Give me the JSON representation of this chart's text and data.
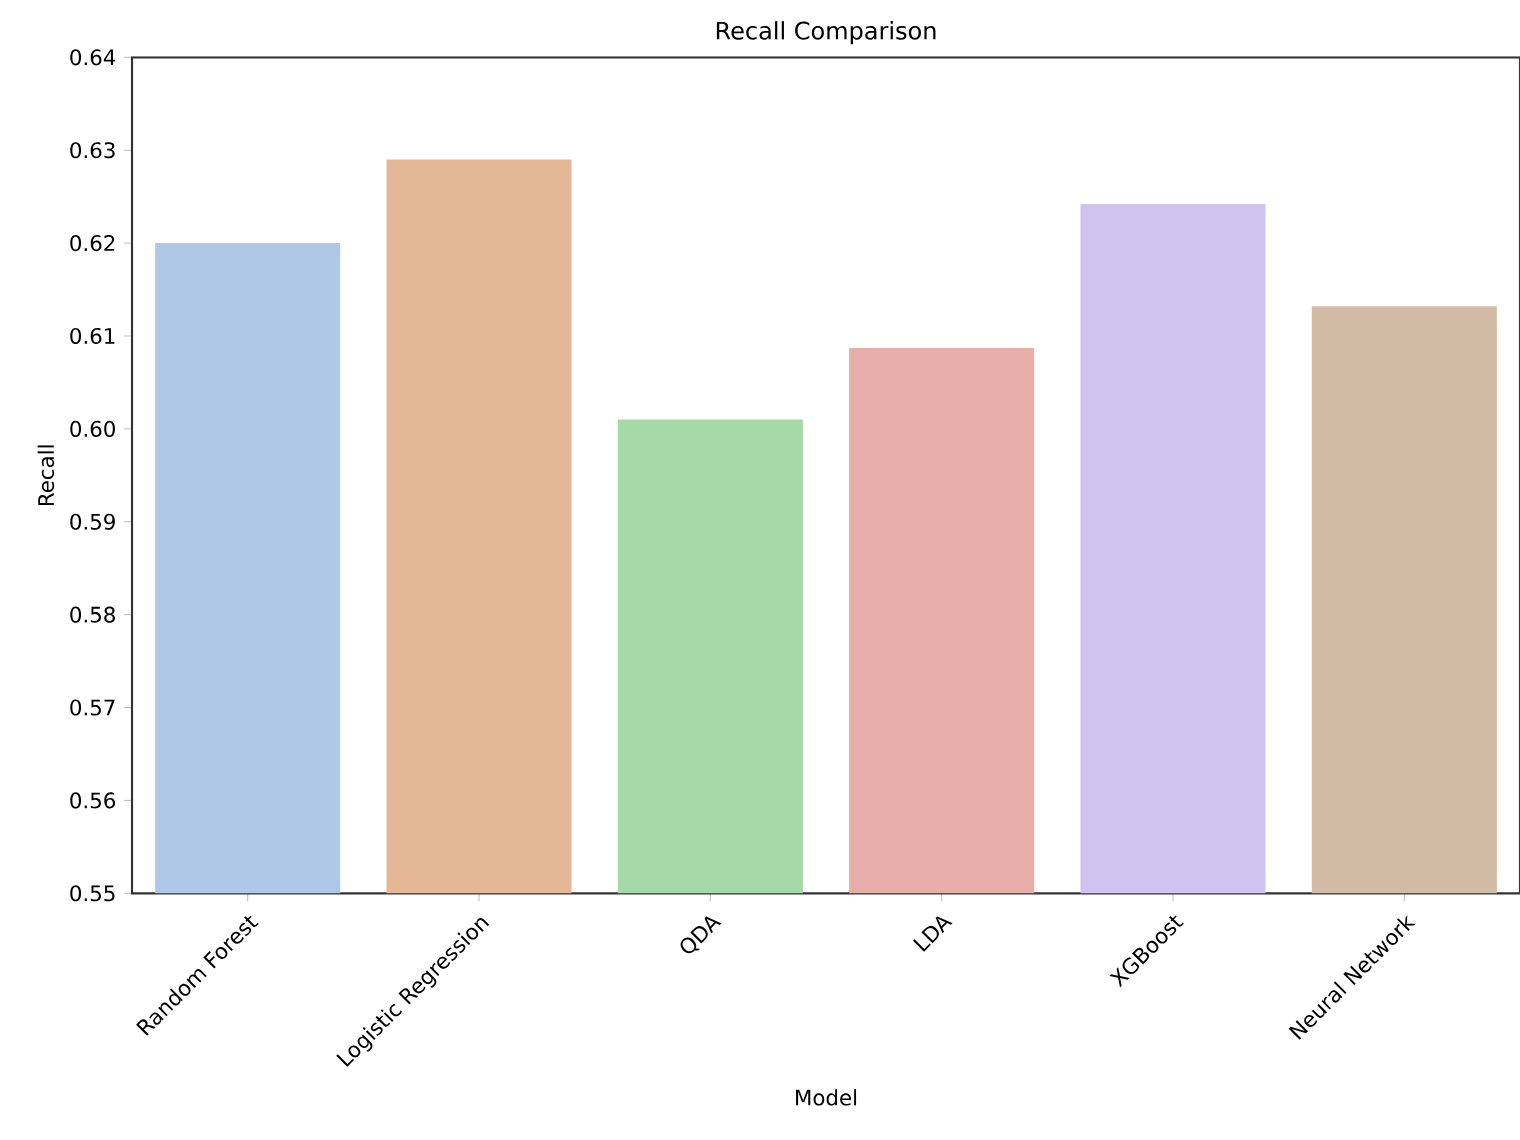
{
  "chart_data": {
    "type": "bar",
    "title": "Recall Comparison",
    "xlabel": "Model",
    "ylabel": "Recall",
    "categories": [
      "Random Forest",
      "Logistic Regression",
      "QDA",
      "LDA",
      "XGBoost",
      "Neural Network"
    ],
    "values": [
      0.62,
      0.629,
      0.601,
      0.6087,
      0.6242,
      0.6132
    ],
    "colors": [
      "#b0c8e8",
      "#e4b896",
      "#a7d8a8",
      "#e6ada9",
      "#cfc3f0",
      "#d2bba4"
    ],
    "ylim": [
      0.55,
      0.64
    ],
    "yticks": [
      0.55,
      0.56,
      0.57,
      0.58,
      0.59,
      {
        "value": 0.6,
        "label": "0.60"
      },
      0.61,
      0.62,
      0.63,
      0.64
    ]
  }
}
